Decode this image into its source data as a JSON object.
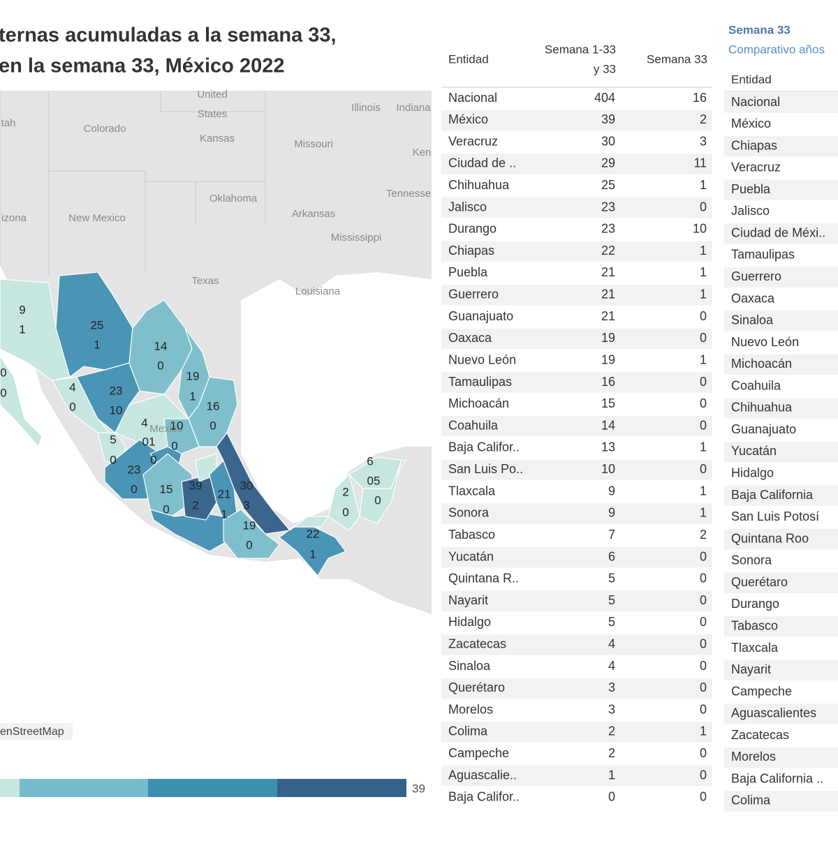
{
  "header": {
    "title_line1": "ternas acumuladas a la semana 33,",
    "title_line2": "en la semana 33, México 2022"
  },
  "map": {
    "places": [
      "United",
      "States",
      "Illinois",
      "Indiana",
      "tah",
      "Colorado",
      "Kansas",
      "Missouri",
      "Ken",
      "Oklahoma",
      "Tennesse",
      "izona",
      "New Mexico",
      "Arkansas",
      "Mississippi",
      "Texas",
      "Louisiana",
      "Mexico"
    ],
    "labels": [
      9,
      1,
      25,
      1,
      14,
      0,
      19,
      1,
      16,
      0,
      0,
      0,
      4,
      0,
      23,
      10,
      4,
      "01",
      0,
      10,
      0,
      5,
      0,
      23,
      0,
      15,
      0,
      39,
      2,
      21,
      1,
      30,
      3,
      19,
      0,
      22,
      1,
      2,
      0,
      6,
      "05",
      0
    ],
    "attribution": "enStreetMap",
    "legend_max": 39
  },
  "table1": {
    "headers": [
      "Entidad",
      "Semana 1-33",
      "y 33",
      "Semana 33"
    ],
    "rows": [
      [
        "Nacional",
        404,
        16
      ],
      [
        "México",
        39,
        2
      ],
      [
        "Veracruz",
        30,
        3
      ],
      [
        "Ciudad de ..",
        29,
        11
      ],
      [
        "Chihuahua",
        25,
        1
      ],
      [
        "Jalisco",
        23,
        0
      ],
      [
        "Durango",
        23,
        10
      ],
      [
        "Chiapas",
        22,
        1
      ],
      [
        "Puebla",
        21,
        1
      ],
      [
        "Guerrero",
        21,
        1
      ],
      [
        "Guanajuato",
        21,
        0
      ],
      [
        "Oaxaca",
        19,
        0
      ],
      [
        "Nuevo León",
        19,
        1
      ],
      [
        "Tamaulipas",
        16,
        0
      ],
      [
        "Michoacán",
        15,
        0
      ],
      [
        "Coahuila",
        14,
        0
      ],
      [
        "Baja Califor..",
        13,
        1
      ],
      [
        "San Luis Po..",
        10,
        0
      ],
      [
        "Tlaxcala",
        9,
        1
      ],
      [
        "Sonora",
        9,
        1
      ],
      [
        "Tabasco",
        7,
        2
      ],
      [
        "Yucatán",
        6,
        0
      ],
      [
        "Quintana R..",
        5,
        0
      ],
      [
        "Nayarit",
        5,
        0
      ],
      [
        "Hidalgo",
        5,
        0
      ],
      [
        "Zacatecas",
        4,
        0
      ],
      [
        "Sinaloa",
        4,
        0
      ],
      [
        "Querétaro",
        3,
        0
      ],
      [
        "Morelos",
        3,
        0
      ],
      [
        "Colima",
        2,
        1
      ],
      [
        "Campeche",
        2,
        0
      ],
      [
        "Aguascalie..",
        1,
        0
      ],
      [
        "Baja Califor..",
        0,
        0
      ]
    ]
  },
  "table2": {
    "title": "Semana 33",
    "subtitle": "Comparativo años",
    "header": "Entidad",
    "rows": [
      "Nacional",
      "México",
      "Chiapas",
      "Veracruz",
      "Puebla",
      "Jalisco",
      "Ciudad de Méxi..",
      "Tamaulipas",
      "Guerrero",
      "Oaxaca",
      "Sinaloa",
      "Nuevo León",
      "Michoacán",
      "Coahuila",
      "Chihuahua",
      "Guanajuato",
      "Yucatán",
      "Hidalgo",
      "Baja California",
      "San Luis Potosí",
      "Quintana Roo",
      "Sonora",
      "Querétaro",
      "Durango",
      "Tabasco",
      "Tlaxcala",
      "Nayarit",
      "Campeche",
      "Aguascalientes",
      "Zacatecas",
      "Morelos",
      "Baja California ..",
      "Colima"
    ]
  }
}
